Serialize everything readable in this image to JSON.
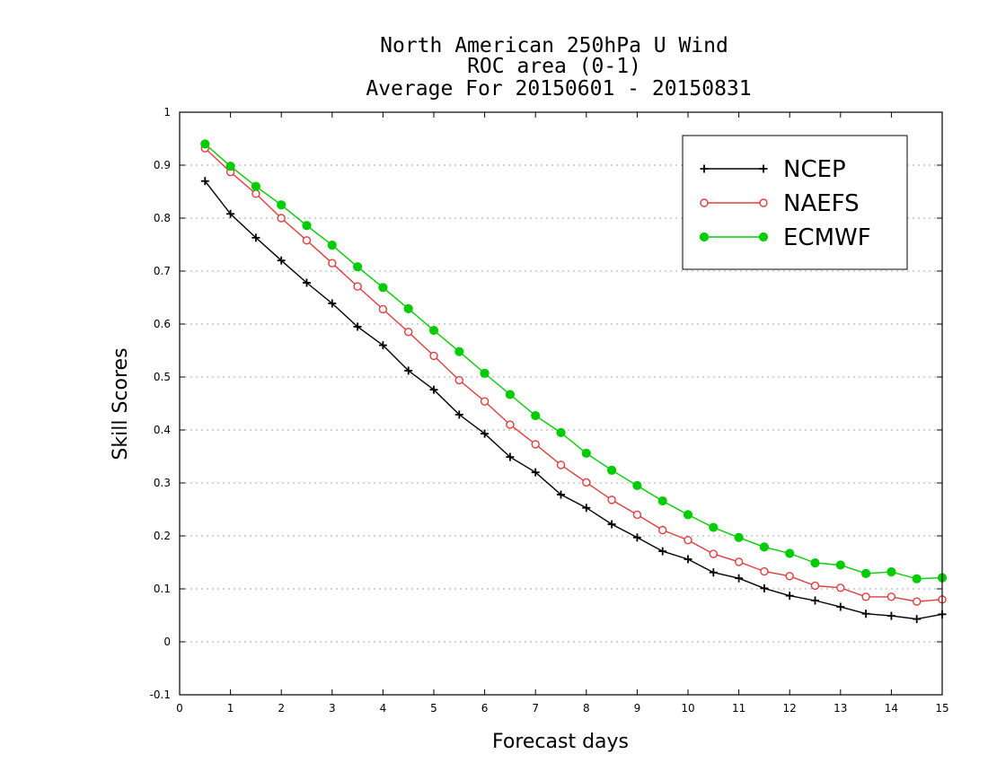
{
  "chart_data": {
    "type": "line",
    "title": [
      "North American 250hPa U Wind",
      "ROC area (0-1)",
      "Average For 20150601 - 20150831"
    ],
    "xlabel": "Forecast days",
    "ylabel": "Skill Scores",
    "xlim": [
      0,
      15
    ],
    "ylim": [
      -0.1,
      1
    ],
    "xticks": [
      "0",
      "1",
      "2",
      "3",
      "4",
      "5",
      "6",
      "7",
      "8",
      "9",
      "10",
      "11",
      "12",
      "13",
      "14",
      "15"
    ],
    "yticks": [
      "-0.1",
      "0",
      "0.1",
      "0.2",
      "0.3",
      "0.4",
      "0.5",
      "0.6",
      "0.7",
      "0.8",
      "0.9",
      "1"
    ],
    "grid": true,
    "legend_position": "top-right",
    "x": [
      0.5,
      1,
      1.5,
      2,
      2.5,
      3,
      3.5,
      4,
      4.5,
      5,
      5.5,
      6,
      6.5,
      7,
      7.5,
      8,
      8.5,
      9,
      9.5,
      10,
      10.5,
      11,
      11.5,
      12,
      12.5,
      13,
      13.5,
      14,
      14.5,
      15
    ],
    "series": [
      {
        "name": "NCEP",
        "color": "#000000",
        "marker": "plus",
        "values": [
          0.87,
          0.808,
          0.763,
          0.72,
          0.678,
          0.639,
          0.595,
          0.56,
          0.512,
          0.476,
          0.429,
          0.393,
          0.349,
          0.32,
          0.278,
          0.253,
          0.222,
          0.197,
          0.171,
          0.156,
          0.131,
          0.12,
          0.101,
          0.087,
          0.078,
          0.066,
          0.053,
          0.049,
          0.043,
          0.052
        ]
      },
      {
        "name": "NAEFS",
        "color": "#e03c3c",
        "marker": "open-circle",
        "values": [
          0.932,
          0.887,
          0.846,
          0.8,
          0.758,
          0.715,
          0.671,
          0.628,
          0.585,
          0.54,
          0.494,
          0.454,
          0.41,
          0.373,
          0.334,
          0.301,
          0.268,
          0.24,
          0.211,
          0.192,
          0.166,
          0.151,
          0.133,
          0.124,
          0.106,
          0.102,
          0.085,
          0.085,
          0.076,
          0.08
        ]
      },
      {
        "name": "ECMWF",
        "color": "#00cc00",
        "marker": "filled-circle",
        "values": [
          0.94,
          0.898,
          0.86,
          0.825,
          0.786,
          0.749,
          0.708,
          0.669,
          0.629,
          0.588,
          0.548,
          0.507,
          0.467,
          0.427,
          0.395,
          0.356,
          0.324,
          0.295,
          0.266,
          0.24,
          0.216,
          0.197,
          0.179,
          0.167,
          0.149,
          0.145,
          0.129,
          0.132,
          0.119,
          0.121
        ]
      }
    ]
  }
}
